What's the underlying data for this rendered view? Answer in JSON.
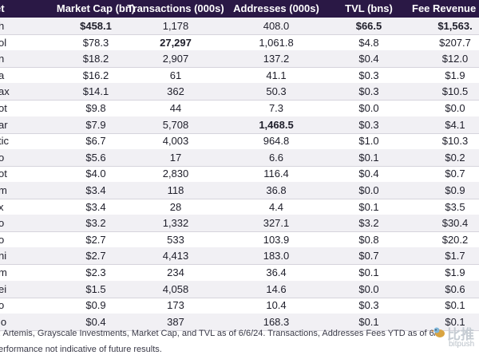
{
  "header": {
    "col0": "et",
    "col1": "Market Cap (bn)",
    "col2": "Transactions (000s)",
    "col3": "Addresses (000s)",
    "col4": "TVL (bns)",
    "col5": "Fee Revenue"
  },
  "rows": [
    {
      "name": "h",
      "mcap": "$458.1",
      "tx": "1,178",
      "addr": "408.0",
      "tvl": "$66.5",
      "fee": "$1,563."
    },
    {
      "name": "ol",
      "mcap": "$78.3",
      "tx": "27,297",
      "addr": "1,061.8",
      "tvl": "$4.8",
      "fee": "$207.7"
    },
    {
      "name": "n",
      "mcap": "$18.2",
      "tx": "2,907",
      "addr": "137.2",
      "tvl": "$0.4",
      "fee": "$12.0"
    },
    {
      "name": "a",
      "mcap": "$16.2",
      "tx": "61",
      "addr": "41.1",
      "tvl": "$0.3",
      "fee": "$1.9"
    },
    {
      "name": "ax",
      "mcap": "$14.1",
      "tx": "362",
      "addr": "50.3",
      "tvl": "$0.3",
      "fee": "$10.5"
    },
    {
      "name": "ot",
      "mcap": "$9.8",
      "tx": "44",
      "addr": "7.3",
      "tvl": "$0.0",
      "fee": "$0.0"
    },
    {
      "name": "ar",
      "mcap": "$7.9",
      "tx": "5,708",
      "addr": "1,468.5",
      "tvl": "$0.3",
      "fee": "$4.1"
    },
    {
      "name": "tic",
      "mcap": "$6.7",
      "tx": "4,003",
      "addr": "964.8",
      "tvl": "$1.0",
      "fee": "$10.3"
    },
    {
      "name": "o",
      "mcap": "$5.6",
      "tx": "17",
      "addr": "6.6",
      "tvl": "$0.1",
      "fee": "$0.2"
    },
    {
      "name": "ot",
      "mcap": "$4.0",
      "tx": "2,830",
      "addr": "116.4",
      "tvl": "$0.4",
      "fee": "$0.7"
    },
    {
      "name": "m",
      "mcap": "$3.4",
      "tx": "118",
      "addr": "36.8",
      "tvl": "$0.0",
      "fee": "$0.9"
    },
    {
      "name": "x",
      "mcap": "$3.4",
      "tx": "28",
      "addr": "4.4",
      "tvl": "$0.1",
      "fee": "$3.5"
    },
    {
      "name": "o",
      "mcap": "$3.2",
      "tx": "1,332",
      "addr": "327.1",
      "tvl": "$3.2",
      "fee": "$30.4"
    },
    {
      "name": "o",
      "mcap": "$2.7",
      "tx": "533",
      "addr": "103.9",
      "tvl": "$0.8",
      "fee": "$20.2"
    },
    {
      "name": "ni",
      "mcap": "$2.7",
      "tx": "4,413",
      "addr": "183.0",
      "tvl": "$0.7",
      "fee": "$1.7"
    },
    {
      "name": "m",
      "mcap": "$2.3",
      "tx": "234",
      "addr": "36.4",
      "tvl": "$0.1",
      "fee": "$1.9"
    },
    {
      "name": "ei",
      "mcap": "$1.5",
      "tx": "4,058",
      "addr": "14.6",
      "tvl": "$0.0",
      "fee": "$0.6"
    },
    {
      "name": "o",
      "mcap": "$0.9",
      "tx": "173",
      "addr": "10.4",
      "tvl": "$0.3",
      "fee": "$0.1"
    },
    {
      "name": "lo",
      "mcap": "$0.4",
      "tx": "387",
      "addr": "168.3",
      "tvl": "$0.1",
      "fee": "$0.1"
    }
  ],
  "footnotes": {
    "line1": ": Artemis, Grayscale Investments, Market Cap, and TVL as of 6/6/24. Transactions, Addresses Fees YTD as of 6/6",
    "line2": "erformance not indicative of future results."
  },
  "watermark": {
    "cn": "比推",
    "en": "bitpush"
  }
}
